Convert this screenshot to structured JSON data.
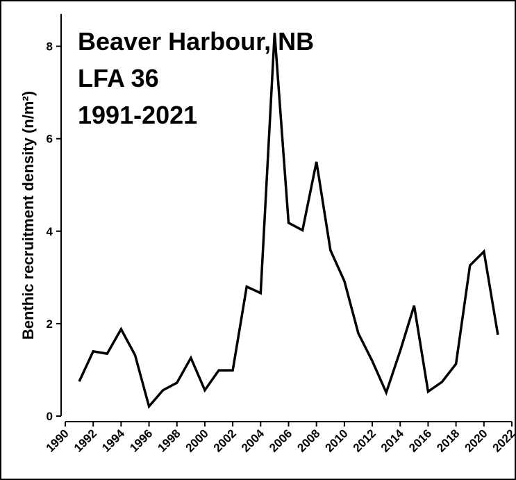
{
  "chart_data": {
    "type": "line",
    "title": [
      "Beaver Harbour, NB",
      "LFA 36",
      "1991-2021"
    ],
    "ylabel": "Benthic recruitment density (n/m²)",
    "x": [
      1991,
      1992,
      1993,
      1994,
      1995,
      1996,
      1997,
      1998,
      1999,
      2000,
      2001,
      2002,
      2003,
      2004,
      2005,
      2006,
      2007,
      2008,
      2009,
      2010,
      2011,
      2012,
      2013,
      2014,
      2015,
      2016,
      2017,
      2018,
      2019,
      2020,
      2021
    ],
    "series": [
      {
        "color": "#000000",
        "values": [
          0.75,
          1.4,
          1.35,
          1.88,
          1.32,
          0.21,
          0.56,
          0.72,
          1.26,
          0.56,
          0.99,
          0.99,
          2.8,
          2.66,
          8.29,
          4.18,
          4.02,
          5.5,
          3.59,
          2.92,
          1.79,
          1.19,
          0.51,
          1.41,
          2.39,
          0.53,
          0.74,
          1.13,
          3.26,
          3.56,
          1.76
        ]
      }
    ],
    "xlim": [
      1990,
      2022
    ],
    "xticks": [
      1990,
      1992,
      1994,
      1996,
      1998,
      2000,
      2002,
      2004,
      2006,
      2008,
      2010,
      2012,
      2014,
      2016,
      2018,
      2020,
      2022
    ],
    "ylim": [
      0,
      8.7
    ],
    "yticks": [
      0,
      2,
      4,
      6,
      8
    ]
  }
}
